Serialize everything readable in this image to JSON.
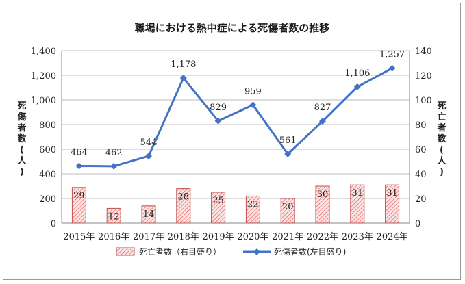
{
  "chart_data": {
    "type": "bar+line",
    "title": "職場における熱中症による死傷者数の推移",
    "categories": [
      "2015年",
      "2016年",
      "2017年",
      "2018年",
      "2019年",
      "2020年",
      "2021年",
      "2022年",
      "2023年",
      "2024年"
    ],
    "series": [
      {
        "name": "死亡者数（右目盛り）",
        "type": "bar",
        "axis": "right",
        "values": [
          29,
          12,
          14,
          28,
          25,
          22,
          20,
          30,
          31,
          31
        ],
        "color": "#c0504d"
      },
      {
        "name": "死傷者数(左目盛り)",
        "type": "line",
        "axis": "left",
        "values": [
          464,
          462,
          544,
          1178,
          829,
          959,
          561,
          827,
          1106,
          1257
        ],
        "color": "#4472c4"
      }
    ],
    "y_left": {
      "label": "死傷者数(人)",
      "range": [
        0,
        1400
      ],
      "ticks": [
        0,
        200,
        400,
        600,
        800,
        1000,
        1200,
        1400
      ],
      "tick_labels": [
        "0",
        "200",
        "400",
        "600",
        "800",
        "1,000",
        "1,200",
        "1,400"
      ]
    },
    "y_right": {
      "label": "死亡者数(人)",
      "range": [
        0,
        140
      ],
      "ticks": [
        0,
        20,
        40,
        60,
        80,
        100,
        120,
        140
      ],
      "tick_labels": [
        "0",
        "20",
        "40",
        "60",
        "80",
        "100",
        "120",
        "140"
      ]
    },
    "line_labels": [
      "464",
      "462",
      "544",
      "1,178",
      "829",
      "959",
      "561",
      "827",
      "1,106",
      "1,257"
    ],
    "grid": true,
    "legend": "bottom"
  }
}
